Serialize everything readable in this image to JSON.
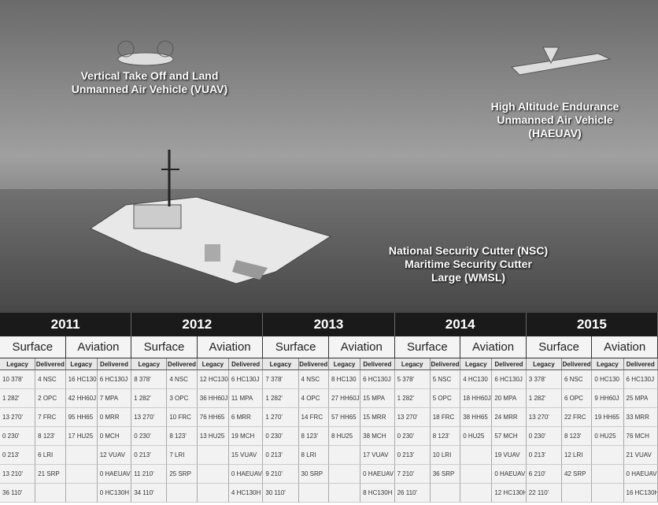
{
  "scene_labels": {
    "vuav": [
      "Vertical Take Off and Land",
      "Unmanned Air Vehicle (VUAV)"
    ],
    "haeuav": [
      "High Altitude Endurance",
      "Unmanned Air Vehicle",
      "(HAEUAV)"
    ],
    "nsc": [
      "National Security Cutter (NSC)",
      "Maritime Security Cutter",
      "Large (WMSL)"
    ]
  },
  "column_headers": {
    "surface": "Surface",
    "aviation": "Aviation",
    "legacy": "Legacy",
    "delivered": "Delivered"
  },
  "years": [
    {
      "year": "2011",
      "rows": [
        {
          "surface_legacy": "10 378'",
          "surface_delivered": "4 NSC",
          "aviation_legacy": "16 HC130",
          "aviation_delivered": "6 HC130J"
        },
        {
          "surface_legacy": "1 282'",
          "surface_delivered": "2 OPC",
          "aviation_legacy": "42 HH60J",
          "aviation_delivered": "7 MPA"
        },
        {
          "surface_legacy": "13 270'",
          "surface_delivered": "7 FRC",
          "aviation_legacy": "95 HH65",
          "aviation_delivered": "0 MRR"
        },
        {
          "surface_legacy": "0 230'",
          "surface_delivered": "8 123'",
          "aviation_legacy": "17 HU25",
          "aviation_delivered": "0 MCH"
        },
        {
          "surface_legacy": "0 213'",
          "surface_delivered": "6 LRI",
          "aviation_delivered": "12 VUAV"
        },
        {
          "surface_legacy": "13 210'",
          "surface_delivered": "21 SRP",
          "aviation_delivered": "0 HAEUAV"
        },
        {
          "surface_legacy": "36 110'",
          "aviation_delivered": "0 HC130H"
        }
      ]
    },
    {
      "year": "2012",
      "rows": [
        {
          "surface_legacy": "8 378'",
          "surface_delivered": "4 NSC",
          "aviation_legacy": "12 HC130",
          "aviation_delivered": "6 HC130J"
        },
        {
          "surface_legacy": "1 282'",
          "surface_delivered": "3 OPC",
          "aviation_legacy": "36 HH60J",
          "aviation_delivered": "11 MPA"
        },
        {
          "surface_legacy": "13 270'",
          "surface_delivered": "10 FRC",
          "aviation_legacy": "76 HH65",
          "aviation_delivered": "6 MRR"
        },
        {
          "surface_legacy": "0 230'",
          "surface_delivered": "8 123'",
          "aviation_legacy": "13 HU25",
          "aviation_delivered": "19 MCH"
        },
        {
          "surface_legacy": "0 213'",
          "surface_delivered": "7 LRI",
          "aviation_delivered": "15 VUAV"
        },
        {
          "surface_legacy": "11 210'",
          "surface_delivered": "25 SRP",
          "aviation_delivered": "0 HAEUAV"
        },
        {
          "surface_legacy": "34 110'",
          "aviation_delivered": "4 HC130H"
        }
      ]
    },
    {
      "year": "2013",
      "rows": [
        {
          "surface_legacy": "7 378'",
          "surface_delivered": "4 NSC",
          "aviation_legacy": "8 HC130",
          "aviation_delivered": "6 HC130J"
        },
        {
          "surface_legacy": "1 282'",
          "surface_delivered": "4 OPC",
          "aviation_legacy": "27 HH60J",
          "aviation_delivered": "15 MPA"
        },
        {
          "surface_legacy": "1 270'",
          "surface_delivered": "14 FRC",
          "aviation_legacy": "57 HH65",
          "aviation_delivered": "15 MRR"
        },
        {
          "surface_legacy": "0 230'",
          "surface_delivered": "8 123'",
          "aviation_legacy": "8 HU25",
          "aviation_delivered": "38 MCH"
        },
        {
          "surface_legacy": "0 213'",
          "surface_delivered": "8 LRI",
          "aviation_delivered": "17 VUAV"
        },
        {
          "surface_legacy": "9 210'",
          "surface_delivered": "30 SRP",
          "aviation_delivered": "0 HAEUAV"
        },
        {
          "surface_legacy": "30 110'",
          "aviation_delivered": "8 HC130H"
        }
      ]
    },
    {
      "year": "2014",
      "rows": [
        {
          "surface_legacy": "5 378'",
          "surface_delivered": "5 NSC",
          "aviation_legacy": "4 HC130",
          "aviation_delivered": "6 HC130J"
        },
        {
          "surface_legacy": "1 282'",
          "surface_delivered": "5 OPC",
          "aviation_legacy": "18 HH60J",
          "aviation_delivered": "20 MPA"
        },
        {
          "surface_legacy": "13 270'",
          "surface_delivered": "18 FRC",
          "aviation_legacy": "38 HH65",
          "aviation_delivered": "24 MRR"
        },
        {
          "surface_legacy": "0 230'",
          "surface_delivered": "8 123'",
          "aviation_legacy": "0 HU25",
          "aviation_delivered": "57 MCH"
        },
        {
          "surface_legacy": "0 213'",
          "surface_delivered": "10 LRI",
          "aviation_delivered": "19 VUAV"
        },
        {
          "surface_legacy": "7 210'",
          "surface_delivered": "36 SRP",
          "aviation_delivered": "0 HAEUAV"
        },
        {
          "surface_legacy": "26 110'",
          "aviation_delivered": "12 HC130H"
        }
      ]
    },
    {
      "year": "2015",
      "rows": [
        {
          "surface_legacy": "3 378'",
          "surface_delivered": "6 NSC",
          "aviation_legacy": "0 HC130",
          "aviation_delivered": "6 HC130J"
        },
        {
          "surface_legacy": "1 282'",
          "surface_delivered": "6 OPC",
          "aviation_legacy": "9 HH60J",
          "aviation_delivered": "25 MPA"
        },
        {
          "surface_legacy": "13 270'",
          "surface_delivered": "22 FRC",
          "aviation_legacy": "19 HH65",
          "aviation_delivered": "33 MRR"
        },
        {
          "surface_legacy": "0 230'",
          "surface_delivered": "8 123'",
          "aviation_legacy": "0 HU25",
          "aviation_delivered": "76 MCH"
        },
        {
          "surface_legacy": "0 213'",
          "surface_delivered": "12 LRI",
          "aviation_delivered": "21 VUAV"
        },
        {
          "surface_legacy": "6 210'",
          "surface_delivered": "42 SRP",
          "aviation_delivered": "0 HAEUAV"
        },
        {
          "surface_legacy": "22 110'",
          "aviation_delivered": "16 HC130H"
        }
      ]
    }
  ]
}
